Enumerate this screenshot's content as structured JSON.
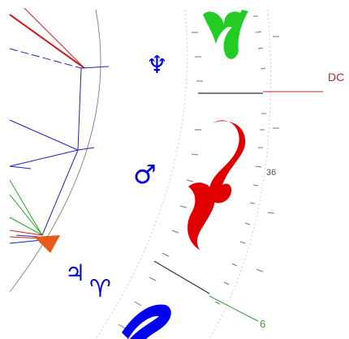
{
  "chart": {
    "labels": {
      "dc": "DC",
      "deg_36": "36",
      "deg_6": "6"
    },
    "planet_glyphs": {
      "neptune": "♆",
      "mars": "♂",
      "jupiter": "♃",
      "aries": "♈"
    },
    "colors": {
      "zodiac_fire": "#e00000",
      "zodiac_earth": "#22cc22",
      "zodiac_air": "#0000ee",
      "planet": "#0000dd",
      "aspect_blue": "#2222bb",
      "aspect_red": "#cc2222",
      "aspect_green": "#22aa22",
      "descendant_line": "#b03030",
      "house_six_line": "#3a9a3a",
      "highlight_wedge": "#e85a1c"
    }
  }
}
